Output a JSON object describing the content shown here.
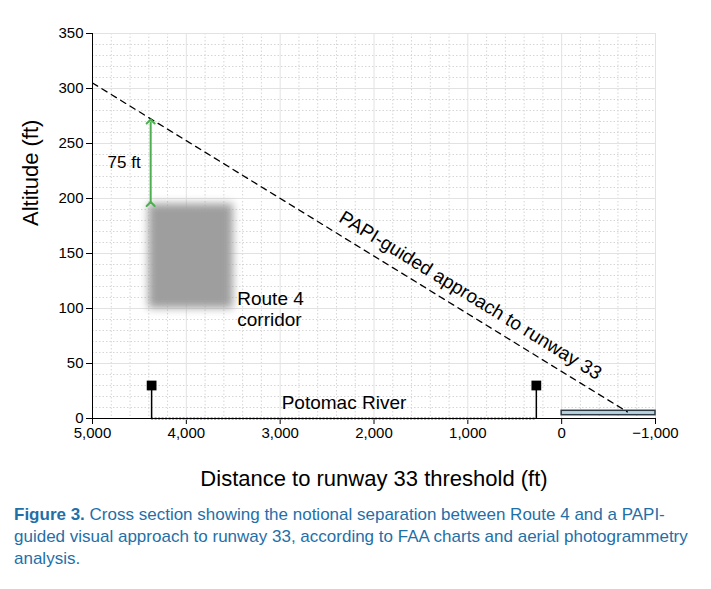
{
  "chart_data": {
    "type": "line",
    "xlabel": "Distance to runway 33 threshold (ft)",
    "ylabel": "Altitude (ft)",
    "xlim": [
      5000,
      -1000
    ],
    "xticks": [
      {
        "value": 5000,
        "label": "5,000"
      },
      {
        "value": 4000,
        "label": "4,000"
      },
      {
        "value": 3000,
        "label": "3,000"
      },
      {
        "value": 2000,
        "label": "2,000"
      },
      {
        "value": 1000,
        "label": "1,000"
      },
      0,
      {
        "value": -1000,
        "label": "−1,000"
      }
    ],
    "ylim": [
      0,
      350
    ],
    "yticks": [
      0,
      50,
      100,
      150,
      200,
      250,
      300,
      350
    ],
    "grid": true,
    "series": [
      {
        "name": "PAPI-guided approach to runway 33",
        "color": "#000000",
        "line_style": "dashed",
        "x": [
          5000,
          -700
        ],
        "values": [
          305,
          6
        ]
      }
    ],
    "corridor": {
      "label": "Route 4\ncorridor",
      "x": [
        4400,
        3500
      ],
      "y": [
        100,
        195
      ],
      "color": "#9e9e9e"
    },
    "separation": {
      "label": "75 ft",
      "x": 4380,
      "y": [
        195,
        270
      ],
      "color": "#4caf50"
    },
    "markers": {
      "x": [
        4370,
        270
      ],
      "y": [
        30,
        30
      ],
      "color": "#000000"
    },
    "river": {
      "label": "Potomac River",
      "x": [
        4370,
        270
      ],
      "y": 0,
      "color": "#6ec6e6"
    },
    "runway": {
      "x": [
        0,
        -1000
      ],
      "y": [
        3,
        7
      ],
      "color": "#b9d3e0"
    },
    "figure_label": "Figure 3.",
    "caption": "Cross section showing the notional separation between Route 4 and a PAPI-guided visual approach to runway 33, according to FAA charts and aerial photogrammetry analysis."
  }
}
